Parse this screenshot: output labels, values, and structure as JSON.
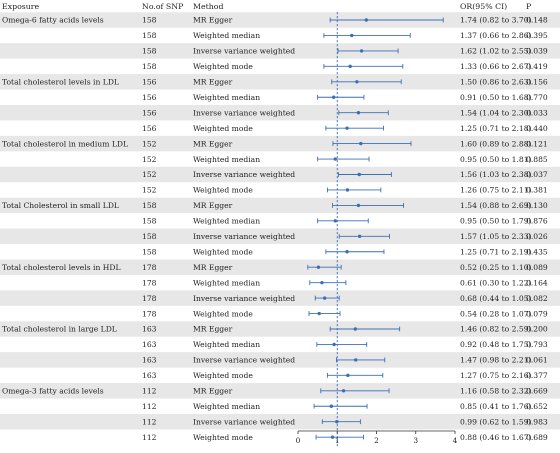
{
  "header": {
    "exposure": "Exposure",
    "snp": "No.of SNP",
    "method": "Method",
    "or": "OR(95% CI)",
    "p": "P"
  },
  "colors": {
    "band": "#e7e7e7",
    "marker": "#3d6fb5",
    "refline": "#3d6fb5",
    "axis": "#333333"
  },
  "chart_data": {
    "type": "forest",
    "reference_value": 1,
    "xlim": [
      0,
      4
    ],
    "xticks": [
      {
        "value": 0,
        "label": "0"
      },
      {
        "value": 1,
        "label": "1"
      },
      {
        "value": 2,
        "label": "2"
      },
      {
        "value": 3,
        "label": "3"
      },
      {
        "value": 4,
        "label": "4"
      }
    ],
    "groups": [
      {
        "exposure": "Omega-6 fatty acids levels",
        "nsnp": "158",
        "rows": [
          {
            "method": "MR Egger",
            "or": 1.74,
            "lower": 0.82,
            "upper": 3.7,
            "or_text": "1.74 (0.82 to 3.70)",
            "p": "0.148"
          },
          {
            "method": "Weighted median",
            "or": 1.37,
            "lower": 0.66,
            "upper": 2.86,
            "or_text": "1.37 (0.66 to 2.86)",
            "p": "0.395"
          },
          {
            "method": "Inverse variance weighted",
            "or": 1.62,
            "lower": 1.02,
            "upper": 2.55,
            "or_text": "1.62 (1.02 to 2.55)",
            "p": "0.039"
          },
          {
            "method": "Weighted mode",
            "or": 1.33,
            "lower": 0.66,
            "upper": 2.67,
            "or_text": "1.33 (0.66 to 2.67)",
            "p": "0.419"
          }
        ]
      },
      {
        "exposure": "Total cholesterol levels in LDL",
        "nsnp": "156",
        "rows": [
          {
            "method": "MR Egger",
            "or": 1.5,
            "lower": 0.86,
            "upper": 2.63,
            "or_text": "1.50 (0.86 to 2.63)",
            "p": "0.156"
          },
          {
            "method": "Weighted median",
            "or": 0.91,
            "lower": 0.5,
            "upper": 1.68,
            "or_text": "0.91 (0.50 to 1.68)",
            "p": "0.770"
          },
          {
            "method": "Inverse variance weighted",
            "or": 1.54,
            "lower": 1.04,
            "upper": 2.3,
            "or_text": "1.54 (1.04 to 2.30)",
            "p": "0.033"
          },
          {
            "method": "Weighted mode",
            "or": 1.25,
            "lower": 0.71,
            "upper": 2.18,
            "or_text": "1.25 (0.71 to 2.18)",
            "p": "0.440"
          }
        ]
      },
      {
        "exposure": "Total cholesterol in medium LDL",
        "nsnp": "152",
        "rows": [
          {
            "method": "MR Egger",
            "or": 1.6,
            "lower": 0.89,
            "upper": 2.88,
            "or_text": "1.60 (0.89 to 2.88)",
            "p": "0.121"
          },
          {
            "method": "Weighted median",
            "or": 0.95,
            "lower": 0.5,
            "upper": 1.81,
            "or_text": "0.95 (0.50 to 1.81)",
            "p": "0.885"
          },
          {
            "method": "Inverse variance weighted",
            "or": 1.56,
            "lower": 1.03,
            "upper": 2.38,
            "or_text": "1.56 (1.03 to 2.38)",
            "p": "0.037"
          },
          {
            "method": "Weighted mode",
            "or": 1.26,
            "lower": 0.75,
            "upper": 2.11,
            "or_text": "1.26 (0.75 to 2.11)",
            "p": "0.381"
          }
        ]
      },
      {
        "exposure": "Total Cholesterol in small LDL",
        "nsnp": "158",
        "rows": [
          {
            "method": "MR Egger",
            "or": 1.54,
            "lower": 0.88,
            "upper": 2.69,
            "or_text": "1.54 (0.88 to 2.69)",
            "p": "0.130"
          },
          {
            "method": "Weighted median",
            "or": 0.95,
            "lower": 0.5,
            "upper": 1.79,
            "or_text": "0.95 (0.50 to 1.79)",
            "p": "0.876"
          },
          {
            "method": "Inverse variance weighted",
            "or": 1.57,
            "lower": 1.05,
            "upper": 2.33,
            "or_text": "1.57 (1.05 to 2.33)",
            "p": "0.026"
          },
          {
            "method": "Weighted mode",
            "or": 1.25,
            "lower": 0.71,
            "upper": 2.19,
            "or_text": "1.25 (0.71 to 2.19)",
            "p": "0.435"
          }
        ]
      },
      {
        "exposure": "Total cholesterol levels in HDL",
        "nsnp": "178",
        "rows": [
          {
            "method": "MR Egger",
            "or": 0.52,
            "lower": 0.25,
            "upper": 1.1,
            "or_text": "0.52 (0.25 to 1.10)",
            "p": "0.089"
          },
          {
            "method": "Weighted median",
            "or": 0.61,
            "lower": 0.3,
            "upper": 1.22,
            "or_text": "0.61 (0.30 to 1.22)",
            "p": "0.164"
          },
          {
            "method": "Inverse variance weighted",
            "or": 0.68,
            "lower": 0.44,
            "upper": 1.05,
            "or_text": "0.68 (0.44 to 1.05)",
            "p": "0.082"
          },
          {
            "method": "Weighted mode",
            "or": 0.54,
            "lower": 0.28,
            "upper": 1.07,
            "or_text": "0.54 (0.28 to 1.07)",
            "p": "0.079"
          }
        ]
      },
      {
        "exposure": "Total cholesterol in large LDL",
        "nsnp": "163",
        "rows": [
          {
            "method": "MR Egger",
            "or": 1.46,
            "lower": 0.82,
            "upper": 2.59,
            "or_text": "1.46 (0.82 to 2.59)",
            "p": "0.200"
          },
          {
            "method": "Weighted median",
            "or": 0.92,
            "lower": 0.48,
            "upper": 1.75,
            "or_text": "0.92 (0.48 to 1.75)",
            "p": "0.793"
          },
          {
            "method": "Inverse variance weighted",
            "or": 1.47,
            "lower": 0.98,
            "upper": 2.21,
            "or_text": "1.47 (0.98 to 2.21)",
            "p": "0.061"
          },
          {
            "method": "Weighted mode",
            "or": 1.27,
            "lower": 0.75,
            "upper": 2.16,
            "or_text": "1.27 (0.75 to 2.16)",
            "p": "0.377"
          }
        ]
      },
      {
        "exposure": "Omega-3 fatty acids levels",
        "nsnp": "112",
        "rows": [
          {
            "method": "MR Egger",
            "or": 1.16,
            "lower": 0.58,
            "upper": 2.32,
            "or_text": "1.16 (0.58 to 2.32)",
            "p": "0.669"
          },
          {
            "method": "Weighted median",
            "or": 0.85,
            "lower": 0.41,
            "upper": 1.76,
            "or_text": "0.85 (0.41 to 1.76)",
            "p": "0.652"
          },
          {
            "method": "Inverse variance weighted",
            "or": 0.99,
            "lower": 0.62,
            "upper": 1.59,
            "or_text": "0.99 (0.62 to 1.59)",
            "p": "0.983"
          },
          {
            "method": "Weighted mode",
            "or": 0.88,
            "lower": 0.46,
            "upper": 1.67,
            "or_text": "0.88 (0.46 to 1.67)",
            "p": "0.689"
          }
        ]
      }
    ]
  }
}
